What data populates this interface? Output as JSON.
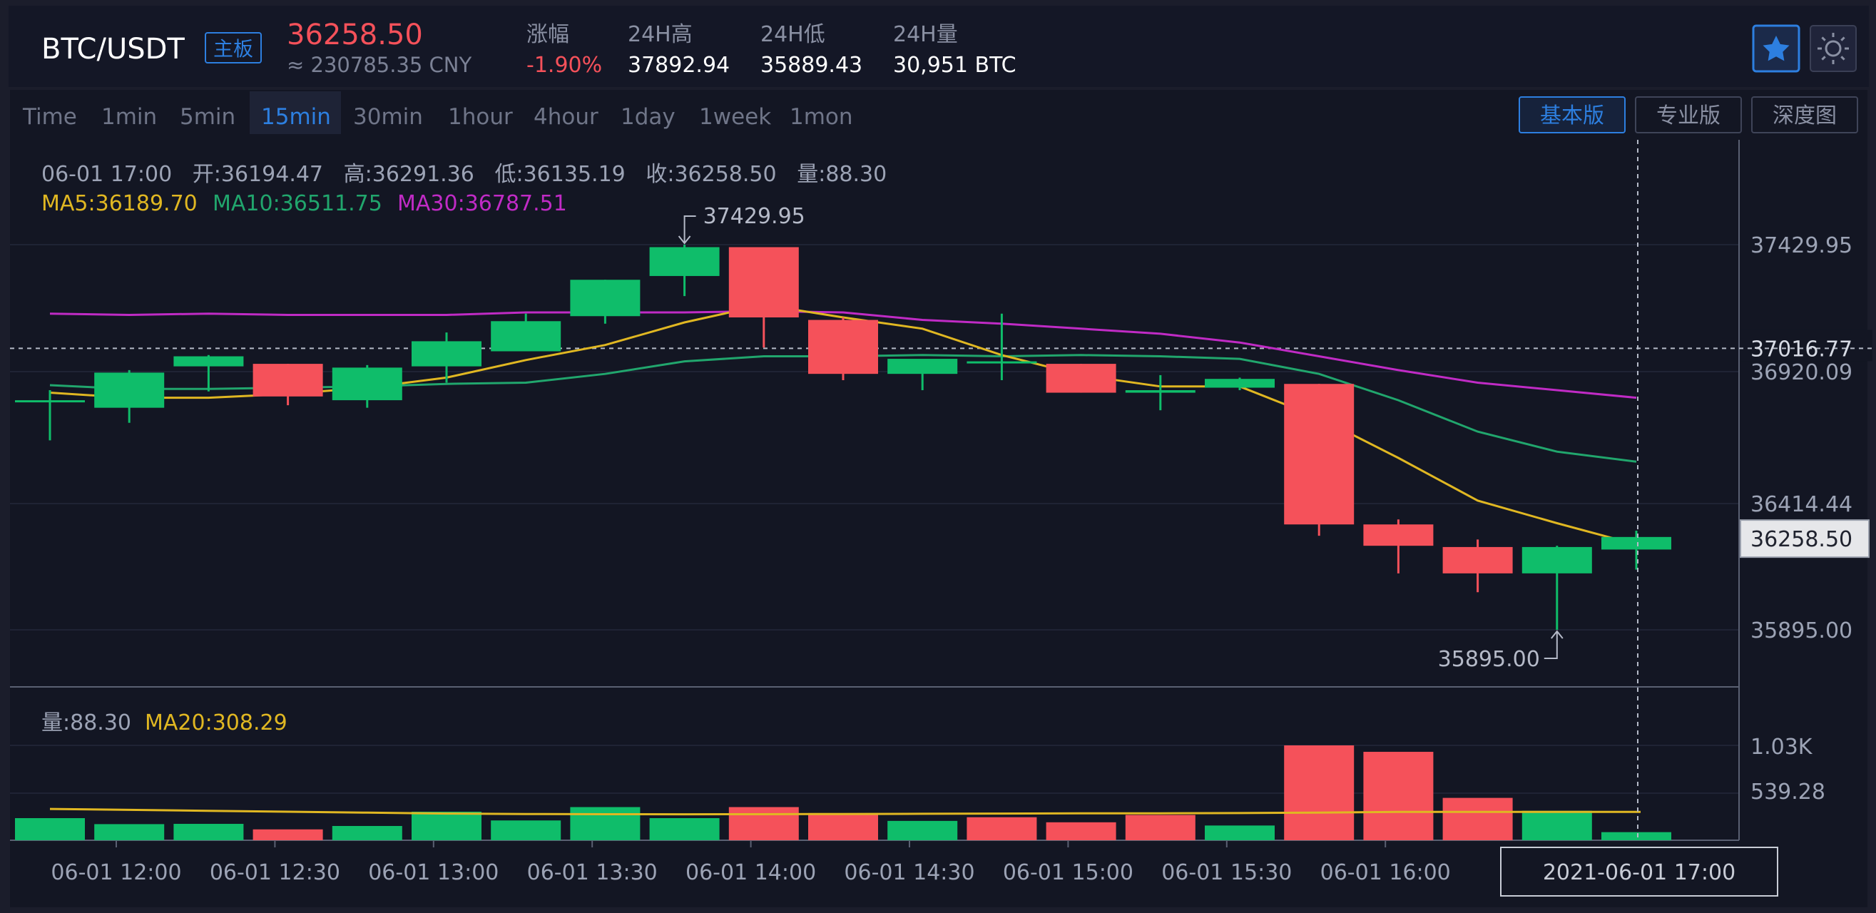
{
  "header": {
    "pair": "BTC/USDT",
    "board_badge": "主板",
    "last_price": "36258.50",
    "cny_price": "≈ 230785.35 CNY",
    "stats": [
      {
        "label": "涨幅",
        "value": "-1.90%",
        "negative": true
      },
      {
        "label": "24H高",
        "value": "37892.94",
        "negative": false
      },
      {
        "label": "24H低",
        "value": "35889.43",
        "negative": false
      },
      {
        "label": "24H量",
        "value": "30,951 BTC",
        "negative": false
      }
    ],
    "favorite_icon": "star-icon",
    "theme_icon": "sun-icon"
  },
  "intervals": {
    "items": [
      "Time",
      "1min",
      "5min",
      "15min",
      "30min",
      "1hour",
      "4hour",
      "1day",
      "1week",
      "1mon"
    ],
    "active": "15min"
  },
  "views": {
    "items": [
      "基本版",
      "专业版",
      "深度图"
    ],
    "active": "基本版"
  },
  "legend": {
    "ohlc": "06-01 17:00   开:36194.47   高:36291.36   低:36135.19   收:36258.50   量:88.30",
    "ma5": "MA5:36189.70",
    "ma10": "MA10:36511.75",
    "ma30": "MA30:36787.51",
    "volume": "量:88.30",
    "vol_ma20": "MA20:308.29"
  },
  "colors": {
    "up": "#0fbd6a",
    "down": "#f5515a",
    "ma5": "#e0b722",
    "ma10": "#21a66d",
    "ma30": "#c02bc5",
    "accent": "#2d7fe0",
    "text": "#9ca3b5",
    "bg": "#131623"
  },
  "chart_data": [
    {
      "type": "candlestick",
      "x_time": [
        "06-01 12:00",
        "06-01 12:30",
        "06-01 13:00",
        "06-01 13:30",
        "06-01 14:00",
        "06-01 14:30",
        "06-01 15:00",
        "06-01 15:30",
        "06-01 16:00"
      ],
      "y_ticks": [
        "37429.95",
        "36920.09",
        "36414.44",
        "35895.00"
      ],
      "ylim": [
        35800,
        37600
      ],
      "current_price_line": "37016.77",
      "last_price_tag": "36258.50",
      "crosshair_time": "2021-06-01 17:00",
      "max_annotation": "37429.95",
      "min_annotation": "35895.00",
      "candles": [
        {
          "t": "11:45",
          "open": 36810,
          "high": 36850,
          "low": 36650,
          "close": 36810
        },
        {
          "t": "12:00",
          "open": 36780,
          "high": 36930,
          "low": 36720,
          "close": 36920
        },
        {
          "t": "12:15",
          "open": 36945,
          "high": 36990,
          "low": 36845,
          "close": 36985
        },
        {
          "t": "12:30",
          "open": 36955,
          "high": 36955,
          "low": 36790,
          "close": 36825
        },
        {
          "t": "12:45",
          "open": 36810,
          "high": 36950,
          "low": 36780,
          "close": 36940
        },
        {
          "t": "13:00",
          "open": 36945,
          "high": 37080,
          "low": 36880,
          "close": 37045
        },
        {
          "t": "13:15",
          "open": 37005,
          "high": 37155,
          "low": 37005,
          "close": 37125
        },
        {
          "t": "13:30",
          "open": 37145,
          "high": 37290,
          "low": 37115,
          "close": 37290
        },
        {
          "t": "13:45",
          "open": 37305,
          "high": 37430,
          "low": 37225,
          "close": 37420
        },
        {
          "t": "14:00",
          "open": 37420,
          "high": 37420,
          "low": 37020,
          "close": 37140
        },
        {
          "t": "14:15",
          "open": 37130,
          "high": 37140,
          "low": 36890,
          "close": 36915
        },
        {
          "t": "14:30",
          "open": 36915,
          "high": 36970,
          "low": 36850,
          "close": 36975
        },
        {
          "t": "14:45",
          "open": 36960,
          "high": 37155,
          "low": 36890,
          "close": 36965
        },
        {
          "t": "15:00",
          "open": 36955,
          "high": 36955,
          "low": 36840,
          "close": 36840
        },
        {
          "t": "15:15",
          "open": 36840,
          "high": 36910,
          "low": 36770,
          "close": 36850
        },
        {
          "t": "15:30",
          "open": 36860,
          "high": 36900,
          "low": 36850,
          "close": 36895
        },
        {
          "t": "15:45",
          "open": 36875,
          "high": 36875,
          "low": 36270,
          "close": 36315
        },
        {
          "t": "16:00",
          "open": 36315,
          "high": 36335,
          "low": 36120,
          "close": 36230
        },
        {
          "t": "16:15",
          "open": 36225,
          "high": 36255,
          "low": 36045,
          "close": 36120
        },
        {
          "t": "16:30",
          "open": 36120,
          "high": 36230,
          "low": 35895,
          "close": 36225
        },
        {
          "t": "16:45",
          "open": 36215,
          "high": 36290,
          "low": 36135,
          "close": 36265
        }
      ],
      "ma5": [
        36840,
        36820,
        36820,
        36835,
        36860,
        36900,
        36970,
        37030,
        37120,
        37190,
        37140,
        37095,
        36990,
        36910,
        36865,
        36865,
        36740,
        36580,
        36410,
        36320,
        36235
      ],
      "ma10": [
        36870,
        36855,
        36855,
        36860,
        36865,
        36875,
        36880,
        36915,
        36965,
        36985,
        36985,
        36990,
        36985,
        36990,
        36985,
        36975,
        36915,
        36810,
        36685,
        36605,
        36565
      ],
      "ma30": [
        37155,
        37150,
        37155,
        37150,
        37150,
        37150,
        37160,
        37160,
        37160,
        37165,
        37160,
        37130,
        37115,
        37095,
        37075,
        37040,
        36985,
        36930,
        36880,
        36850,
        36820
      ]
    },
    {
      "type": "bar",
      "title": "volume",
      "ylim": [
        0,
        1150
      ],
      "y_ticks": [
        "1.03K",
        "539.28"
      ],
      "values": [
        240,
        175,
        178,
        118,
        155,
        310,
        215,
        360,
        240,
        360,
        295,
        210,
        250,
        195,
        275,
        160,
        1030,
        960,
        460,
        320,
        88
      ],
      "directions": [
        "up",
        "up",
        "up",
        "down",
        "up",
        "up",
        "up",
        "up",
        "up",
        "down",
        "down",
        "up",
        "down",
        "down",
        "down",
        "up",
        "down",
        "down",
        "down",
        "up",
        "up"
      ],
      "ma20": [
        340,
        330,
        320,
        310,
        300,
        290,
        285,
        283,
        282,
        283,
        285,
        287,
        290,
        292,
        293,
        295,
        300,
        308,
        308,
        308,
        308
      ]
    }
  ]
}
